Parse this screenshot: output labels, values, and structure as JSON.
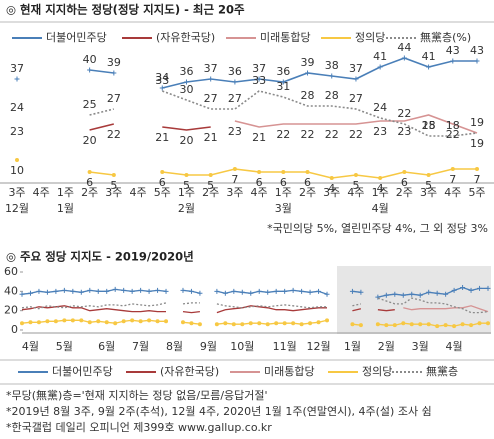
{
  "chart_data": [
    {
      "type": "line",
      "title": "◎  현재 지지하는 정당(정당 지지도) - 최근 20주",
      "categories": [
        "3주",
        "4주",
        "1주",
        "2주",
        "3주",
        "4주",
        "5주",
        "1주",
        "2주",
        "3주",
        "4주",
        "1주",
        "2주",
        "3주",
        "4주",
        "1주",
        "2주",
        "3주",
        "4주",
        "5주"
      ],
      "months": [
        "12월",
        null,
        "1월",
        null,
        null,
        null,
        null,
        "2월",
        null,
        null,
        null,
        "3월",
        null,
        null,
        null,
        "4월",
        null,
        null,
        null,
        null
      ],
      "series": [
        {
          "name": "더불어민주당",
          "color": "#4a7fb8",
          "label_pos": "above",
          "marker": "plus",
          "values": [
            37,
            null,
            null,
            40,
            39,
            null,
            34,
            36,
            37,
            36,
            37,
            36,
            39,
            38,
            37,
            41,
            44,
            41,
            43,
            43
          ]
        },
        {
          "name": "(자유한국당)",
          "color": "#a83a3a",
          "label_pos": "below",
          "values": [
            23,
            null,
            null,
            20,
            22,
            null,
            21,
            20,
            21,
            null,
            null,
            null,
            null,
            null,
            null,
            null,
            null,
            null,
            null,
            null
          ]
        },
        {
          "name": "미래통합당",
          "color": "#d69393",
          "label_pos": "below",
          "values": [
            null,
            null,
            null,
            null,
            null,
            null,
            null,
            null,
            null,
            23,
            21,
            22,
            22,
            22,
            22,
            23,
            23,
            25,
            22,
            19
          ]
        },
        {
          "name": "정의당",
          "color": "#f7c843",
          "label_pos": "below",
          "marker": "dot",
          "values": [
            10,
            null,
            null,
            6,
            5,
            null,
            6,
            5,
            5,
            7,
            6,
            6,
            6,
            4,
            5,
            4,
            6,
            5,
            7,
            7
          ]
        },
        {
          "name": "無黨층(%)",
          "color": "#8a8a8a",
          "label_pos": "above",
          "dashed": true,
          "values": [
            24,
            null,
            null,
            25,
            27,
            null,
            33,
            30,
            27,
            27,
            33,
            31,
            28,
            28,
            27,
            24,
            22,
            18,
            18,
            19
          ]
        }
      ],
      "note": "*국민의당 5%, 열린민주당 4%, 그 외 정당 3%"
    },
    {
      "type": "line",
      "title": "◎  주요 정당 지지도 - 2019/2020년",
      "categories": [
        null,
        "4월",
        null,
        null,
        null,
        "5월",
        null,
        null,
        null,
        null,
        "6월",
        null,
        null,
        null,
        "7월",
        null,
        null,
        null,
        "8월",
        null,
        null,
        null,
        "9월",
        null,
        null,
        null,
        "10월",
        null,
        null,
        null,
        null,
        "11월",
        null,
        null,
        null,
        "12월",
        null,
        null,
        null,
        "1월",
        null,
        null,
        null,
        "2월",
        null,
        null,
        null,
        "3월",
        null,
        null,
        null,
        "4월",
        null,
        null,
        null,
        null
      ],
      "ylim": [
        0,
        60
      ],
      "yticks": [
        0,
        20,
        40,
        60
      ],
      "series": [
        {
          "name": "더불어민주당",
          "color": "#4a7fb8",
          "marker": "plus",
          "values": [
            37,
            38,
            40,
            39,
            40,
            41,
            40,
            39,
            41,
            40,
            40,
            42,
            41,
            40,
            41,
            40,
            41,
            40,
            null,
            41,
            40,
            38,
            null,
            40,
            38,
            40,
            39,
            38,
            40,
            39,
            40,
            40,
            41,
            40,
            39,
            40,
            37,
            null,
            null,
            40,
            39,
            null,
            34,
            36,
            37,
            36,
            37,
            36,
            39,
            38,
            37,
            41,
            44,
            41,
            43,
            43
          ]
        },
        {
          "name": "(자유한국당)",
          "color": "#a83a3a",
          "values": [
            21,
            22,
            24,
            23,
            24,
            25,
            23,
            23,
            20,
            21,
            22,
            21,
            20,
            19,
            19,
            20,
            19,
            19,
            null,
            19,
            18,
            19,
            null,
            18,
            21,
            22,
            23,
            25,
            24,
            23,
            21,
            21,
            20,
            21,
            22,
            23,
            23,
            null,
            null,
            20,
            22,
            null,
            21,
            20,
            21,
            null,
            null,
            null,
            null,
            null,
            null,
            null,
            null,
            null,
            null,
            null
          ]
        },
        {
          "name": "미래통합당",
          "color": "#d69393",
          "values": [
            null,
            null,
            null,
            null,
            null,
            null,
            null,
            null,
            null,
            null,
            null,
            null,
            null,
            null,
            null,
            null,
            null,
            null,
            null,
            null,
            null,
            null,
            null,
            null,
            null,
            null,
            null,
            null,
            null,
            null,
            null,
            null,
            null,
            null,
            null,
            null,
            null,
            null,
            null,
            null,
            null,
            null,
            null,
            null,
            null,
            23,
            21,
            22,
            22,
            22,
            22,
            23,
            23,
            25,
            22,
            19
          ]
        },
        {
          "name": "정의당",
          "color": "#f7c843",
          "marker": "dot",
          "values": [
            7,
            8,
            8,
            9,
            9,
            10,
            10,
            10,
            8,
            9,
            8,
            7,
            9,
            10,
            9,
            10,
            9,
            9,
            null,
            8,
            7,
            6,
            null,
            6,
            7,
            6,
            6,
            7,
            7,
            6,
            7,
            7,
            7,
            6,
            7,
            8,
            10,
            null,
            null,
            6,
            5,
            null,
            6,
            5,
            5,
            7,
            6,
            6,
            6,
            4,
            5,
            4,
            6,
            5,
            7,
            7
          ]
        },
        {
          "name": "無黨층",
          "color": "#8a8a8a",
          "dashed": true,
          "values": [
            23,
            24,
            22,
            25,
            24,
            23,
            25,
            24,
            25,
            24,
            26,
            26,
            25,
            27,
            26,
            25,
            26,
            28,
            null,
            27,
            28,
            28,
            null,
            27,
            25,
            24,
            23,
            24,
            25,
            24,
            25,
            26,
            25,
            24,
            23,
            24,
            24,
            null,
            null,
            25,
            27,
            null,
            33,
            30,
            27,
            27,
            33,
            31,
            28,
            28,
            27,
            24,
            22,
            18,
            18,
            19
          ]
        }
      ],
      "notes": [
        "*무당(無黨)층='현재 지지하는 정당 없음/모름/응답거절'",
        "*2019년 8월 3주, 9월 2주(추석), 12월 4주, 2020년 1월 1주(연말연시), 4주(설) 조사 쉼",
        "*한국갤럽 데일리 오피니언 제399호 www.gallup.co.kr"
      ]
    }
  ]
}
